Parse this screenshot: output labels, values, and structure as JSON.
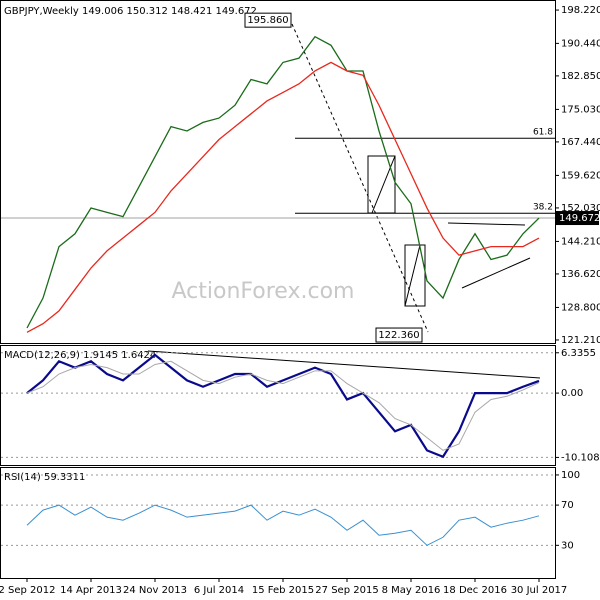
{
  "chart_data": [
    {
      "type": "line",
      "title": "GBPJPY,Weekly 149.006 150.312 148.421 149.672",
      "ylim": [
        120.5,
        200.1
      ],
      "yticks": [
        {
          "value": 198.22,
          "label": "198.220"
        },
        {
          "value": 190.44,
          "label": "190.440"
        },
        {
          "value": 182.85,
          "label": "182.850"
        },
        {
          "value": 175.03,
          "label": "175.030"
        },
        {
          "value": 167.44,
          "label": "167.440"
        },
        {
          "value": 159.62,
          "label": "159.620"
        },
        {
          "value": 152.03,
          "label": "152.030"
        },
        {
          "value": 144.21,
          "label": "144.210"
        },
        {
          "value": 136.62,
          "label": "136.620"
        },
        {
          "value": 128.8,
          "label": "128.800"
        },
        {
          "value": 121.21,
          "label": "121.210"
        }
      ],
      "grid": false,
      "series": [
        {
          "color": "#1a6b1a",
          "width": 1.3,
          "values": [
            124,
            131,
            143,
            146,
            152,
            151,
            150,
            157,
            164,
            171,
            170,
            172,
            173,
            176,
            182,
            181,
            186,
            187,
            192,
            190,
            184,
            184,
            170,
            158,
            153,
            135,
            131,
            140,
            146,
            140,
            141,
            146,
            149.672
          ]
        },
        {
          "color": "#e8281e",
          "width": 1.3,
          "values": [
            123,
            125,
            128,
            133,
            138,
            142,
            145,
            148,
            151,
            156,
            160,
            164,
            168,
            171,
            174,
            177,
            179,
            181,
            184,
            186,
            184,
            183,
            176,
            168,
            160,
            152,
            145,
            141,
            142,
            143,
            143,
            143,
            145
          ]
        }
      ],
      "last_price": 149.672,
      "levels": [
        {
          "label": "61.8",
          "value": 168.3
        },
        {
          "label": "38.2",
          "value": 150.8
        }
      ],
      "annotations": [
        {
          "text": "195.860",
          "value": 195.86
        },
        {
          "text": "122.360",
          "value": 122.36
        }
      ],
      "watermark": "ActionForex.com"
    },
    {
      "type": "line",
      "title": "MACD(12,26,9) 1.9145 1.6424",
      "ylim": [
        -11.3,
        7.4
      ],
      "yticks": [
        6.3355,
        {
          "value": 0,
          "label": "0.00"
        },
        -10.1082
      ],
      "grid": true,
      "series": [
        {
          "color": "#0a0a8c",
          "width": 2.2,
          "values": [
            0,
            2,
            5,
            4,
            5,
            3,
            2,
            4,
            6,
            4,
            2,
            1,
            2,
            3,
            3,
            1,
            2,
            3,
            4,
            3,
            -1,
            0,
            -3,
            -6,
            -5,
            -9,
            -10,
            -6,
            0,
            0,
            0,
            1,
            1.9145
          ]
        },
        {
          "color": "#a8a8a8",
          "width": 1,
          "values": [
            0,
            1,
            3,
            4,
            4.5,
            4,
            3,
            3,
            4.5,
            5,
            3.5,
            2,
            1.5,
            2.5,
            3,
            2,
            1.5,
            2.5,
            3.5,
            3.5,
            1.5,
            0,
            -1.5,
            -4,
            -5,
            -7,
            -9,
            -8,
            -3,
            -1,
            -0.5,
            0.5,
            1.6424
          ]
        }
      ]
    },
    {
      "type": "line",
      "title": "RSI(14) 59.3311",
      "ylim": [
        -2.5,
        106.9
      ],
      "yticks": [
        100,
        70,
        30
      ],
      "grid": true,
      "categories": [
        "2 Sep 2012",
        null,
        null,
        null,
        "14 Apr 2013",
        null,
        null,
        null,
        "24 Nov 2013",
        null,
        null,
        null,
        "6 Jul 2014",
        null,
        null,
        null,
        "15 Feb 2015",
        null,
        null,
        null,
        "27 Sep 2015",
        null,
        null,
        null,
        "8 May 2016",
        null,
        null,
        null,
        "18 Dec 2016",
        null,
        null,
        null,
        "30 Jul 2017"
      ],
      "series": [
        {
          "color": "#3a8fd0",
          "width": 1,
          "values": [
            50,
            65,
            70,
            60,
            68,
            58,
            55,
            62,
            70,
            65,
            58,
            60,
            62,
            64,
            70,
            55,
            64,
            60,
            66,
            58,
            45,
            55,
            40,
            42,
            45,
            30,
            38,
            55,
            58,
            48,
            52,
            55,
            59.3311
          ]
        }
      ]
    }
  ]
}
